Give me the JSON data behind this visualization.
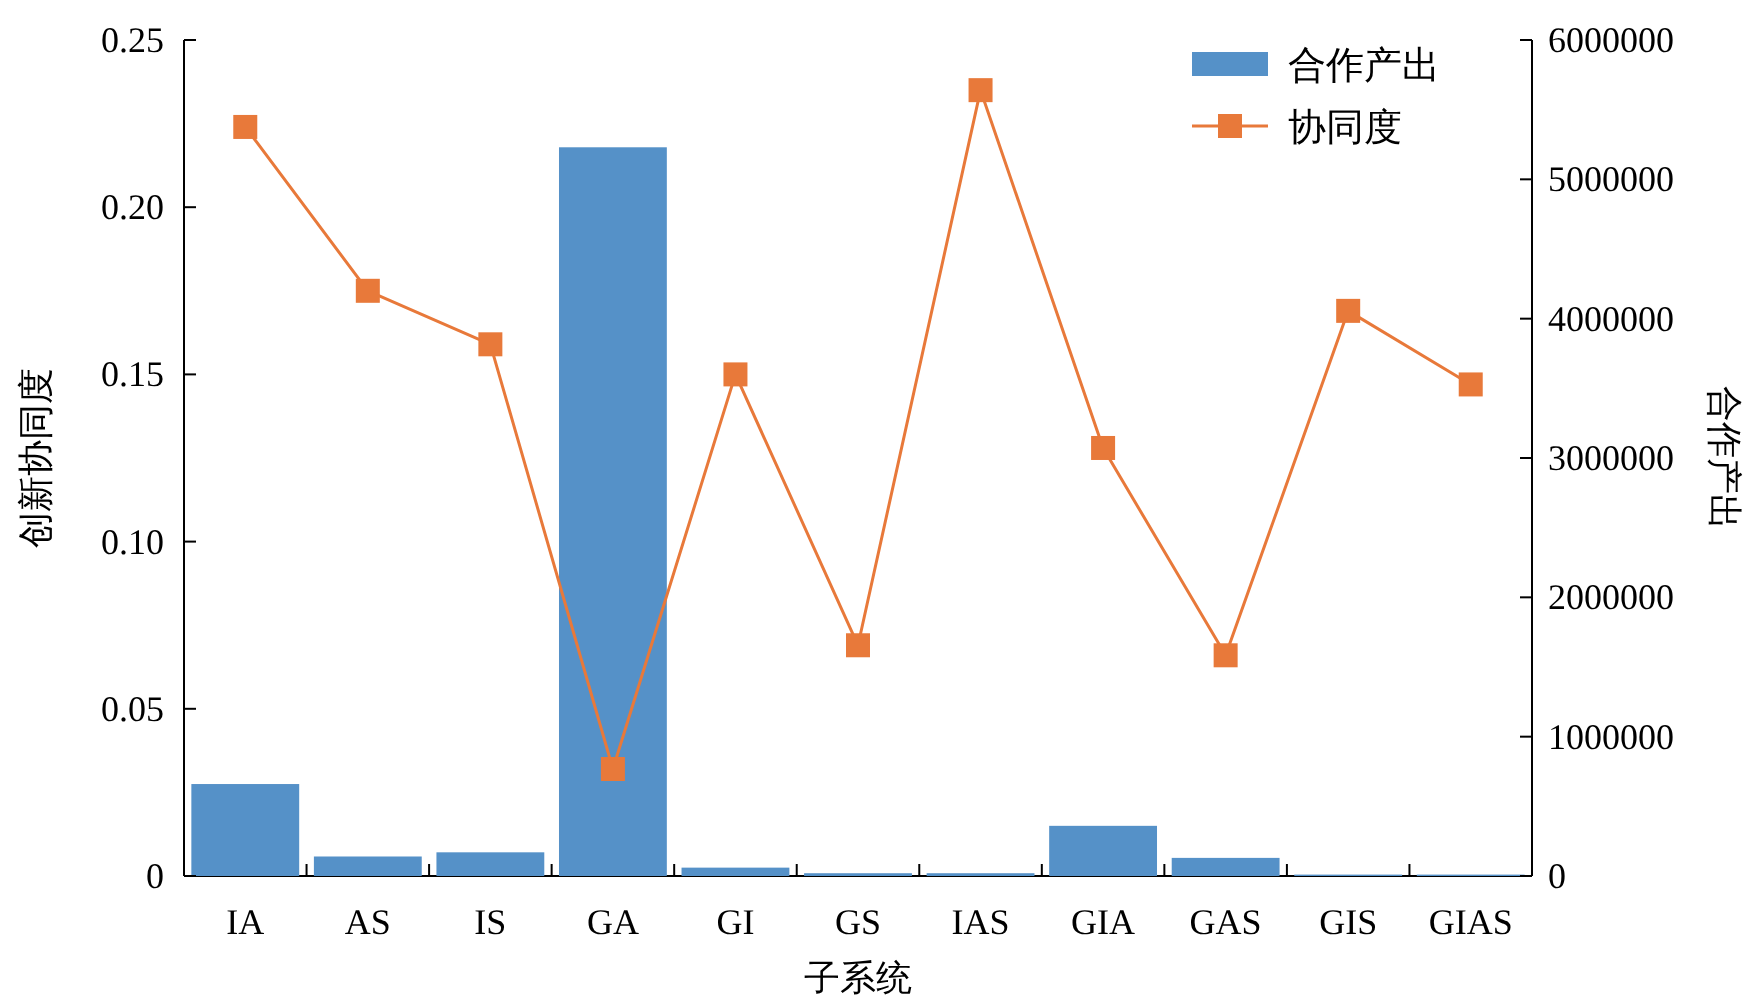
{
  "chart_data": {
    "type": "bar",
    "xlabel": "子系统",
    "ylabel": "创新协同度",
    "y2label": "合作产出",
    "categories": [
      "IA",
      "AS",
      "IS",
      "GA",
      "GI",
      "GS",
      "IAS",
      "GIA",
      "GAS",
      "GIS",
      "GIAS"
    ],
    "series": [
      {
        "name": "合作产出",
        "axis": "y2",
        "color": "#5591c8",
        "values": [
          660000,
          140000,
          170000,
          5230000,
          60000,
          20000,
          20000,
          360000,
          130000,
          10000,
          10000
        ]
      },
      {
        "name": "协同度",
        "type": "line",
        "axis": "y",
        "color": "#e8793a",
        "marker": "square",
        "values": [
          0.224,
          0.175,
          0.159,
          0.032,
          0.15,
          0.069,
          0.235,
          0.128,
          0.066,
          0.169,
          0.147
        ]
      }
    ],
    "ylim": [
      0,
      0.25
    ],
    "yticks": [
      0,
      0.05,
      {
        "value": 0.1,
        "label": "0.10"
      },
      0.15,
      {
        "value": 0.2,
        "label": "0.20"
      },
      0.25
    ],
    "y2lim": [
      0,
      6000000
    ],
    "y2ticks": [
      0,
      1000000,
      2000000,
      3000000,
      4000000,
      5000000,
      6000000
    ],
    "legend": "top right"
  }
}
